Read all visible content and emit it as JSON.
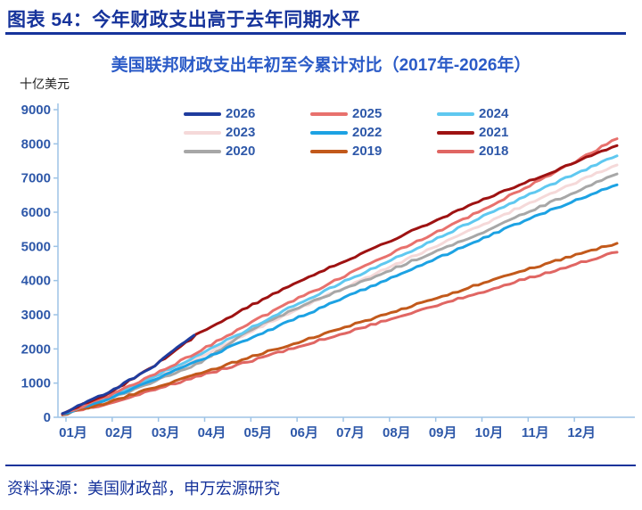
{
  "header": {
    "title": "图表 54：今年财政支出高于去年同期水平"
  },
  "footer": {
    "source": "资料来源：美国财政部，申万宏源研究"
  },
  "colors": {
    "header_navy": "#16339B",
    "chart_title_blue": "#2B5BC7",
    "axis_text_blue": "#2E58A9",
    "axis_line_blue": "#9DC3E6",
    "unit_text": "#1f1f1f"
  },
  "chart_data": {
    "type": "line",
    "title": "美国联邦财政支出年初至今累计对比（2017年-2026年）",
    "unit_label": "十亿美元",
    "ylabel": "十亿美元",
    "xlabel": "",
    "ylim": [
      0,
      9000
    ],
    "yticks": [
      0,
      1000,
      2000,
      3000,
      4000,
      5000,
      6000,
      7000,
      8000,
      9000
    ],
    "categories": [
      "01月",
      "02月",
      "03月",
      "04月",
      "05月",
      "06月",
      "07月",
      "08月",
      "09月",
      "10月",
      "11月",
      "12月"
    ],
    "x_months": [
      0,
      1,
      2,
      3,
      4,
      5,
      6,
      7,
      8,
      9,
      10,
      11,
      12
    ],
    "grid": false,
    "legend_position": "top-center",
    "series": [
      {
        "name": "2026",
        "color": "#1F3C9E",
        "x": [
          0,
          1,
          2,
          2.85
        ],
        "values": [
          110,
          720,
          1500,
          2400
        ]
      },
      {
        "name": "2025",
        "color": "#E8716D",
        "values": [
          90,
          600,
          1250,
          1950,
          2700,
          3400,
          4050,
          4700,
          5350,
          6000,
          6700,
          7400,
          8150
        ]
      },
      {
        "name": "2024",
        "color": "#5FC8F0",
        "values": [
          90,
          580,
          1200,
          1850,
          2550,
          3250,
          3900,
          4520,
          5150,
          5800,
          6450,
          7050,
          7650
        ]
      },
      {
        "name": "2023",
        "color": "#F5D9D9",
        "values": [
          80,
          560,
          1150,
          1780,
          2450,
          3100,
          3720,
          4330,
          4950,
          5570,
          6200,
          6800,
          7380
        ]
      },
      {
        "name": "2022",
        "color": "#1CA2E3",
        "values": [
          90,
          540,
          1100,
          1680,
          2260,
          2850,
          3430,
          4000,
          4580,
          5160,
          5750,
          6280,
          6800
        ]
      },
      {
        "name": "2021",
        "color": "#9E1212",
        "values": [
          100,
          700,
          1500,
          2500,
          3200,
          3900,
          4500,
          5100,
          5700,
          6300,
          6850,
          7400,
          7950
        ]
      },
      {
        "name": "2020",
        "color": "#A7A7A7",
        "values": [
          80,
          520,
          1050,
          1600,
          2500,
          3150,
          3700,
          4250,
          4800,
          5350,
          5950,
          6530,
          7120
        ]
      },
      {
        "name": "2019",
        "color": "#C2591B",
        "values": [
          70,
          430,
          860,
          1290,
          1720,
          2150,
          2580,
          3010,
          3440,
          3870,
          4290,
          4690,
          5090
        ]
      },
      {
        "name": "2018",
        "color": "#E06663",
        "values": [
          70,
          400,
          800,
          1210,
          1610,
          2010,
          2420,
          2820,
          3230,
          3630,
          4030,
          4430,
          4830
        ]
      }
    ]
  }
}
